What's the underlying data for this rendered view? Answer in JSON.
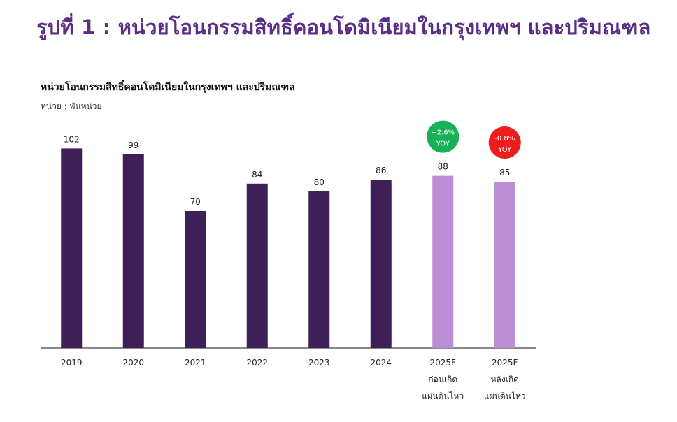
{
  "figure_title": "รูปที่ 1 : หน่วยโอนกรรมสิทธิ์คอนโดมิเนียมในกรุงเทพฯ และปริมณฑล",
  "colors": {
    "heading": "#5a2d86",
    "bar_actual": "#3f1f58",
    "bar_forecast": "#bb8ed6",
    "badge_up": "#17b157",
    "badge_down": "#ee1c1c"
  },
  "chart_data": {
    "type": "bar",
    "title": "หน่วยโอนกรรมสิทธิ์คอนโดมิเนียมในกรุงเทพฯ และปริมณฑล",
    "unit": "หน่วย : พันหน่วย",
    "categories": [
      {
        "year": "2019",
        "sub": []
      },
      {
        "year": "2020",
        "sub": []
      },
      {
        "year": "2021",
        "sub": []
      },
      {
        "year": "2022",
        "sub": []
      },
      {
        "year": "2023",
        "sub": []
      },
      {
        "year": "2024",
        "sub": []
      },
      {
        "year": "2025F",
        "sub": [
          "ก่อนเกิด",
          "แผ่นดินไหว"
        ]
      },
      {
        "year": "2025F",
        "sub": [
          "หลังเกิด",
          "แผ่นดินไหว"
        ]
      }
    ],
    "values": [
      102,
      99,
      70,
      84,
      80,
      86,
      88,
      85
    ],
    "forecast": [
      false,
      false,
      false,
      false,
      false,
      false,
      true,
      true
    ],
    "ylim": [
      0,
      110
    ],
    "grid": false,
    "legend": "none",
    "annotations": [
      {
        "category_index": 6,
        "pct": "+2.6%",
        "tag": "YOY",
        "direction": "up"
      },
      {
        "category_index": 7,
        "pct": "-0.8%",
        "tag": "YOY",
        "direction": "down"
      }
    ]
  }
}
